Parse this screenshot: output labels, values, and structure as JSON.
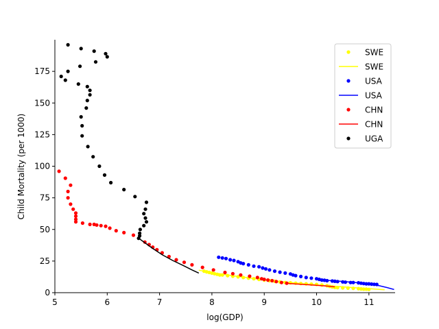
{
  "chart_data": {
    "type": "scatter",
    "title": "",
    "xlabel": "log(GDP)",
    "ylabel": "Child Mortality (per 1000)",
    "xlim": [
      5,
      11.5
    ],
    "ylim": [
      0,
      200
    ],
    "xticks": [
      5,
      6,
      7,
      8,
      9,
      10,
      11
    ],
    "yticks": [
      0,
      25,
      50,
      75,
      100,
      125,
      150,
      175
    ],
    "grid": false,
    "legend_position": "top-right",
    "legend": [
      {
        "label": "SWE",
        "kind": "marker",
        "color": "#ffff00"
      },
      {
        "label": "SWE",
        "kind": "line",
        "color": "#ffff00"
      },
      {
        "label": "USA",
        "kind": "marker",
        "color": "#0000ff"
      },
      {
        "label": "USA",
        "kind": "line",
        "color": "#0000ff"
      },
      {
        "label": "CHN",
        "kind": "marker",
        "color": "#ff0000"
      },
      {
        "label": "CHN",
        "kind": "line",
        "color": "#ff0000"
      },
      {
        "label": "UGA",
        "kind": "marker",
        "color": "#000000"
      }
    ],
    "series": [
      {
        "name": "SWE",
        "kind": "points",
        "color": "#ffff00",
        "points": [
          [
            7.85,
            17
          ],
          [
            7.9,
            16.5
          ],
          [
            7.95,
            16
          ],
          [
            8.0,
            15.5
          ],
          [
            8.05,
            15
          ],
          [
            8.1,
            14.5
          ],
          [
            8.15,
            14
          ],
          [
            8.2,
            14
          ],
          [
            8.3,
            13.5
          ],
          [
            8.4,
            13
          ],
          [
            8.5,
            12.5
          ],
          [
            8.6,
            12
          ],
          [
            8.7,
            11.5
          ],
          [
            8.8,
            11
          ],
          [
            8.9,
            10.5
          ],
          [
            9.0,
            10
          ],
          [
            9.1,
            9.5
          ],
          [
            9.2,
            9
          ],
          [
            9.3,
            8.5
          ],
          [
            9.4,
            8
          ],
          [
            9.5,
            7.8
          ],
          [
            9.6,
            7.5
          ],
          [
            9.7,
            7.2
          ],
          [
            9.8,
            7
          ],
          [
            9.9,
            6.8
          ],
          [
            10.0,
            6.5
          ],
          [
            10.1,
            6
          ],
          [
            10.2,
            5.5
          ],
          [
            10.25,
            5
          ],
          [
            10.3,
            4.5
          ],
          [
            10.35,
            4.2
          ],
          [
            10.4,
            4
          ],
          [
            10.5,
            3.8
          ],
          [
            10.6,
            3.6
          ],
          [
            10.7,
            3.4
          ],
          [
            10.8,
            3.2
          ],
          [
            10.85,
            3
          ],
          [
            10.9,
            2.8
          ],
          [
            10.95,
            2.8
          ],
          [
            11.0,
            2.6
          ]
        ]
      },
      {
        "name": "SWE",
        "kind": "line",
        "color": "#ffff00",
        "points": [
          [
            7.75,
            17.8
          ],
          [
            8.0,
            15.8
          ],
          [
            8.5,
            12.8
          ],
          [
            9.0,
            10.2
          ],
          [
            9.5,
            8.0
          ],
          [
            10.0,
            6.2
          ],
          [
            10.5,
            4.6
          ],
          [
            11.0,
            3.2
          ],
          [
            11.3,
            2.3
          ]
        ]
      },
      {
        "name": "USA",
        "kind": "points",
        "color": "#0000ff",
        "points": [
          [
            8.13,
            28
          ],
          [
            8.2,
            27.5
          ],
          [
            8.27,
            27
          ],
          [
            8.35,
            26
          ],
          [
            8.42,
            25.5
          ],
          [
            8.5,
            24.5
          ],
          [
            8.55,
            23.5
          ],
          [
            8.6,
            23
          ],
          [
            8.7,
            22
          ],
          [
            8.8,
            21
          ],
          [
            8.9,
            20.5
          ],
          [
            8.97,
            19.5
          ],
          [
            9.03,
            18.8
          ],
          [
            9.1,
            18
          ],
          [
            9.2,
            17
          ],
          [
            9.3,
            16.2
          ],
          [
            9.4,
            15.5
          ],
          [
            9.5,
            14.8
          ],
          [
            9.55,
            14
          ],
          [
            9.6,
            13.5
          ],
          [
            9.7,
            12.8
          ],
          [
            9.8,
            12
          ],
          [
            9.9,
            11.5
          ],
          [
            10.0,
            11
          ],
          [
            10.05,
            10.5
          ],
          [
            10.1,
            10
          ],
          [
            10.15,
            9.8
          ],
          [
            10.2,
            9.5
          ],
          [
            10.3,
            9.2
          ],
          [
            10.35,
            9
          ],
          [
            10.4,
            8.8
          ],
          [
            10.5,
            8.5
          ],
          [
            10.55,
            8.3
          ],
          [
            10.65,
            8
          ],
          [
            10.7,
            8
          ],
          [
            10.8,
            7.8
          ],
          [
            10.85,
            7.5
          ],
          [
            10.9,
            7.2
          ],
          [
            10.95,
            7
          ],
          [
            11.0,
            7
          ],
          [
            11.05,
            6.8
          ],
          [
            11.1,
            6.6
          ],
          [
            11.15,
            6.5
          ]
        ]
      },
      {
        "name": "USA",
        "kind": "line",
        "color": "#0000ff",
        "points": [
          [
            10.1,
            10
          ],
          [
            10.4,
            9.2
          ],
          [
            10.7,
            8.2
          ],
          [
            11.0,
            7.0
          ],
          [
            11.2,
            5.5
          ],
          [
            11.35,
            4.0
          ],
          [
            11.48,
            2.5
          ]
        ]
      },
      {
        "name": "CHN",
        "kind": "points",
        "color": "#ff0000",
        "points": [
          [
            5.08,
            96
          ],
          [
            5.2,
            90.5
          ],
          [
            5.3,
            85
          ],
          [
            5.25,
            80
          ],
          [
            5.25,
            75
          ],
          [
            5.3,
            70
          ],
          [
            5.35,
            66
          ],
          [
            5.4,
            63
          ],
          [
            5.4,
            60.5
          ],
          [
            5.4,
            58
          ],
          [
            5.4,
            56
          ],
          [
            5.53,
            55
          ],
          [
            5.67,
            54
          ],
          [
            5.75,
            54
          ],
          [
            5.8,
            53.5
          ],
          [
            5.88,
            53
          ],
          [
            5.97,
            52.5
          ],
          [
            6.05,
            51
          ],
          [
            6.17,
            49
          ],
          [
            6.32,
            47.5
          ],
          [
            6.5,
            45.5
          ],
          [
            6.72,
            40
          ],
          [
            6.8,
            38
          ],
          [
            6.87,
            36
          ],
          [
            6.95,
            34
          ],
          [
            7.05,
            31.5
          ],
          [
            7.18,
            28.5
          ],
          [
            7.32,
            26
          ],
          [
            7.47,
            24
          ],
          [
            7.62,
            22
          ],
          [
            7.82,
            20
          ],
          [
            8.03,
            18
          ],
          [
            8.25,
            16
          ],
          [
            8.4,
            15
          ],
          [
            8.55,
            14
          ],
          [
            8.72,
            13
          ],
          [
            8.87,
            12
          ],
          [
            8.95,
            11
          ],
          [
            9.0,
            10.5
          ],
          [
            9.07,
            10
          ],
          [
            9.15,
            9.5
          ],
          [
            9.23,
            8.8
          ],
          [
            9.33,
            8
          ],
          [
            9.43,
            7.5
          ]
        ]
      },
      {
        "name": "CHN",
        "kind": "line",
        "color": "#ff0000",
        "points": [
          [
            9.4,
            7.5
          ],
          [
            9.7,
            6.6
          ],
          [
            10.0,
            5.8
          ],
          [
            10.2,
            5.2
          ],
          [
            10.35,
            4.6
          ]
        ]
      },
      {
        "name": "UGA",
        "kind": "points",
        "color": "#000000",
        "points": [
          [
            5.25,
            196
          ],
          [
            5.5,
            193
          ],
          [
            5.75,
            191
          ],
          [
            5.97,
            189
          ],
          [
            6.0,
            186.5
          ],
          [
            5.78,
            182.5
          ],
          [
            5.48,
            179
          ],
          [
            5.25,
            175
          ],
          [
            5.12,
            171
          ],
          [
            5.2,
            168
          ],
          [
            5.45,
            165
          ],
          [
            5.62,
            163
          ],
          [
            5.67,
            160
          ],
          [
            5.67,
            156.5
          ],
          [
            5.62,
            152
          ],
          [
            5.6,
            146
          ],
          [
            5.5,
            139
          ],
          [
            5.52,
            132
          ],
          [
            5.52,
            124
          ],
          [
            5.63,
            115.5
          ],
          [
            5.73,
            107.5
          ],
          [
            5.85,
            100
          ],
          [
            5.95,
            93
          ],
          [
            6.07,
            87
          ],
          [
            6.32,
            81.5
          ],
          [
            6.53,
            76
          ],
          [
            6.75,
            71.5
          ],
          [
            6.73,
            66
          ],
          [
            6.7,
            62.5
          ],
          [
            6.73,
            59
          ],
          [
            6.75,
            56
          ],
          [
            6.7,
            53
          ],
          [
            6.63,
            50
          ],
          [
            6.62,
            47
          ],
          [
            6.62,
            45
          ],
          [
            6.6,
            43
          ]
        ]
      },
      {
        "name": "UGA",
        "kind": "line",
        "color": "#000000",
        "points": [
          [
            6.62,
            42.5
          ],
          [
            6.85,
            35.5
          ],
          [
            7.05,
            30
          ],
          [
            7.25,
            25.5
          ],
          [
            7.45,
            21.5
          ],
          [
            7.62,
            18
          ],
          [
            7.75,
            15.5
          ]
        ]
      }
    ]
  }
}
